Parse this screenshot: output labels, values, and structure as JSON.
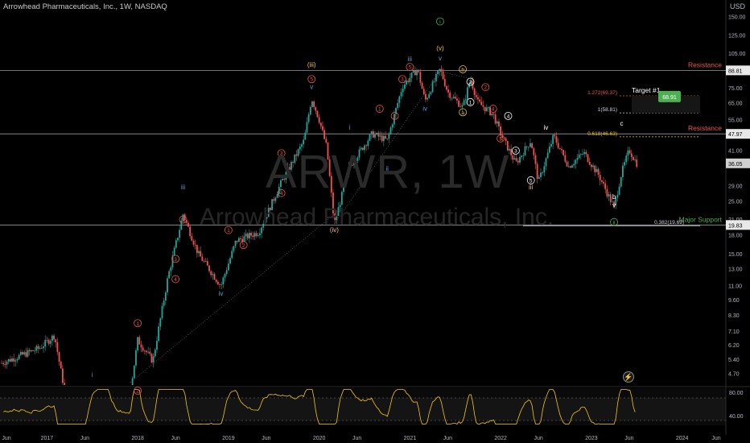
{
  "header": {
    "title": "Arrowhead Pharmaceuticals, Inc., 1W, NASDAQ",
    "currency": "USD"
  },
  "watermark": {
    "symbol": "ARWR, 1W",
    "name": "Arrowhead Pharmaceuticals, Inc."
  },
  "colors": {
    "background": "#000000",
    "up_candle": "#26a69a",
    "down_candle": "#ef5350",
    "rsi_line": "#f5c518",
    "resistance": "#ef5350",
    "support": "#4caf50",
    "target_badge": "#4caf50",
    "wave_red": "#ef5350",
    "wave_blue": "#5b9bd5",
    "wave_yellow": "#f5c518",
    "wave_green": "#4caf50"
  },
  "icons": {
    "flash": "lightning-icon"
  },
  "chart_data": [
    {
      "type": "candlestick",
      "title": "Arrowhead Pharmaceuticals, Inc., 1W, NASDAQ",
      "y_scale": "log",
      "ylim": [
        4.2,
        160
      ],
      "x_tick_labels": [
        "Jun",
        "2017",
        "Jun",
        "2018",
        "Jun",
        "2019",
        "Jun",
        "2020",
        "Jun",
        "2021",
        "Jun",
        "2022",
        "Jun",
        "2023",
        "Jun",
        "2024",
        "Jun"
      ],
      "y_tick_labels": [
        "150.00",
        "125.00",
        "105.00",
        "88.81",
        "75.00",
        "65.00",
        "55.00",
        "47.97",
        "41.00",
        "36.05",
        "29.00",
        "25.00",
        "21.00",
        "19.83",
        "18.00",
        "15.00",
        "13.00",
        "11.00",
        "9.60",
        "8.30",
        "7.10",
        "6.20",
        "5.40",
        "4.70"
      ],
      "price_path": [
        {
          "date": "2016-07",
          "price": 5.2
        },
        {
          "date": "2016-12",
          "price": 6.0
        },
        {
          "date": "2017-02",
          "price": 6.8
        },
        {
          "date": "2017-03",
          "price": 4.5
        },
        {
          "date": "2017-06",
          "price": 1.8
        },
        {
          "date": "2017-09",
          "price": 3.8
        },
        {
          "date": "2017-12",
          "price": 3.9
        },
        {
          "date": "2018-01",
          "price": 6.5
        },
        {
          "date": "2018-03",
          "price": 5.3
        },
        {
          "date": "2018-05",
          "price": 12.0
        },
        {
          "date": "2018-07",
          "price": 22.0
        },
        {
          "date": "2018-09",
          "price": 15.0
        },
        {
          "date": "2018-12",
          "price": 11.0
        },
        {
          "date": "2019-02",
          "price": 17.0
        },
        {
          "date": "2019-05",
          "price": 18.5
        },
        {
          "date": "2019-08",
          "price": 30.0
        },
        {
          "date": "2019-11",
          "price": 45.0
        },
        {
          "date": "2019-12",
          "price": 68.0
        },
        {
          "date": "2020-01",
          "price": 55.0
        },
        {
          "date": "2020-02",
          "price": 42.0
        },
        {
          "date": "2020-03",
          "price": 20.0
        },
        {
          "date": "2020-05",
          "price": 35.0
        },
        {
          "date": "2020-08",
          "price": 48.0
        },
        {
          "date": "2020-10",
          "price": 45.0
        },
        {
          "date": "2020-12",
          "price": 76.0
        },
        {
          "date": "2021-02",
          "price": 90.0
        },
        {
          "date": "2021-03",
          "price": 66.0
        },
        {
          "date": "2021-05",
          "price": 90.0
        },
        {
          "date": "2021-06",
          "price": 72.0
        },
        {
          "date": "2021-08",
          "price": 62.0
        },
        {
          "date": "2021-09",
          "price": 82.0
        },
        {
          "date": "2021-10",
          "price": 65.0
        },
        {
          "date": "2021-12",
          "price": 58.0
        },
        {
          "date": "2022-01",
          "price": 48.0
        },
        {
          "date": "2022-03",
          "price": 36.0
        },
        {
          "date": "2022-05",
          "price": 45.0
        },
        {
          "date": "2022-06",
          "price": 30.0
        },
        {
          "date": "2022-08",
          "price": 47.0
        },
        {
          "date": "2022-10",
          "price": 35.0
        },
        {
          "date": "2022-12",
          "price": 40.0
        },
        {
          "date": "2023-02",
          "price": 32.0
        },
        {
          "date": "2023-04",
          "price": 23.5
        },
        {
          "date": "2023-05",
          "price": 33.0
        },
        {
          "date": "2023-06",
          "price": 41.0
        },
        {
          "date": "2023-07",
          "price": 36.05
        }
      ],
      "price_labels": [
        {
          "price": 88.81,
          "text": "88.81"
        },
        {
          "price": 47.97,
          "text": "47.97"
        },
        {
          "price": 36.05,
          "text": "36.05"
        },
        {
          "price": 19.83,
          "text": "19.83"
        }
      ],
      "level_lines": [
        {
          "price": 88.81,
          "label": "Resistance",
          "kind": "resistance"
        },
        {
          "price": 47.97,
          "label": "Resistance",
          "kind": "resistance"
        },
        {
          "price": 19.83,
          "label": "Major Support",
          "kind": "support"
        }
      ],
      "fib_levels": [
        {
          "price": 69.37,
          "text": "1.272(69.37)",
          "color": "#ef5350"
        },
        {
          "price": 58.81,
          "text": "1(58.81)",
          "color": "#d1d4dc"
        },
        {
          "price": 46.63,
          "text": "0.618(46.63)",
          "color": "#f5c518"
        },
        {
          "price": 19.69,
          "text": "0.382(19.69)",
          "color": "#d1d4dc"
        }
      ],
      "target": {
        "label": "Target #1",
        "price": 68.91,
        "text": "68.91"
      },
      "wave_labels": [
        {
          "date": "2017-07",
          "price": 4.55,
          "text": "i",
          "color": "#5b9bd5"
        },
        {
          "date": "2018-01",
          "price": 3.9,
          "text": "2",
          "color": "#ef5350",
          "circle": true
        },
        {
          "date": "2018-01",
          "price": 7.5,
          "text": "1",
          "color": "#ef5350",
          "circle": true
        },
        {
          "date": "2018-06",
          "price": 14.0,
          "text": "3",
          "color": "#ef5350",
          "circle": true
        },
        {
          "date": "2018-06",
          "price": 11.5,
          "text": "4",
          "color": "#ef5350",
          "circle": true
        },
        {
          "date": "2018-07",
          "price": 20.5,
          "text": "5",
          "color": "#ef5350",
          "circle": true
        },
        {
          "date": "2018-07",
          "price": 28.0,
          "text": "iii",
          "color": "#5b9bd5"
        },
        {
          "date": "2018-12",
          "price": 10.0,
          "text": "iv",
          "color": "#5b9bd5"
        },
        {
          "date": "2019-01",
          "price": 18.5,
          "text": "1",
          "color": "#ef5350",
          "circle": true
        },
        {
          "date": "2019-03",
          "price": 16.0,
          "text": "2",
          "color": "#ef5350",
          "circle": true
        },
        {
          "date": "2019-08",
          "price": 39.0,
          "text": "3",
          "color": "#ef5350",
          "circle": true
        },
        {
          "date": "2019-08",
          "price": 26.5,
          "text": "4",
          "color": "#ef5350",
          "circle": true
        },
        {
          "date": "2019-12",
          "price": 80.0,
          "text": "5",
          "color": "#ef5350",
          "circle": true
        },
        {
          "date": "2019-12",
          "price": 74.0,
          "text": "v",
          "color": "#5b9bd5"
        },
        {
          "date": "2019-12",
          "price": 92.0,
          "text": "(iii)",
          "color": "#f5c518"
        },
        {
          "date": "2020-03",
          "price": 18.5,
          "text": "(iv)",
          "color": "#f5c518"
        },
        {
          "date": "2020-05",
          "price": 50.0,
          "text": "i",
          "color": "#5b9bd5"
        },
        {
          "date": "2020-10",
          "price": 33.5,
          "text": "ii",
          "color": "#5b9bd5"
        },
        {
          "date": "2020-09",
          "price": 60.0,
          "text": "1",
          "color": "#ef5350",
          "circle": true
        },
        {
          "date": "2020-11",
          "price": 56.0,
          "text": "2",
          "color": "#ef5350",
          "circle": true
        },
        {
          "date": "2020-12",
          "price": 80.0,
          "text": "3",
          "color": "#ef5350",
          "circle": true
        },
        {
          "date": "2021-01",
          "price": 90.0,
          "text": "5",
          "color": "#ef5350",
          "circle": true
        },
        {
          "date": "2021-01",
          "price": 97.0,
          "text": "iii",
          "color": "#5b9bd5"
        },
        {
          "date": "2021-03",
          "price": 60.0,
          "text": "iv",
          "color": "#5b9bd5"
        },
        {
          "date": "2021-05",
          "price": 98.0,
          "text": "v",
          "color": "#5b9bd5"
        },
        {
          "date": "2021-05",
          "price": 108.0,
          "text": "(v)",
          "color": "#f5c518"
        },
        {
          "date": "2021-05",
          "price": 140.0,
          "text": "i",
          "color": "#4caf50",
          "circle": true
        },
        {
          "date": "2021-08",
          "price": 58.0,
          "text": "a",
          "color": "#f5c518",
          "circle": true
        },
        {
          "date": "2021-08",
          "price": 88.0,
          "text": "b",
          "color": "#f5c518",
          "circle": true
        },
        {
          "date": "2021-09",
          "price": 78.0,
          "text": "2",
          "color": "#ffffff",
          "circle": true
        },
        {
          "date": "2021-09",
          "price": 64.0,
          "text": "1",
          "color": "#ffffff",
          "circle": true
        },
        {
          "date": "2021-11",
          "price": 74.0,
          "text": "2",
          "color": "#ef5350",
          "circle": true
        },
        {
          "date": "2021-12",
          "price": 60.0,
          "text": "4",
          "color": "#ef5350",
          "circle": true
        },
        {
          "date": "2022-01",
          "price": 45.0,
          "text": "5",
          "color": "#ef5350",
          "circle": true
        },
        {
          "date": "2022-02",
          "price": 56.0,
          "text": "4",
          "color": "#ffffff",
          "circle": true
        },
        {
          "date": "2022-03",
          "price": 40.0,
          "text": "3",
          "color": "#ffffff",
          "circle": true
        },
        {
          "date": "2022-05",
          "price": 30.0,
          "text": "5",
          "color": "#ffffff",
          "circle": true
        },
        {
          "date": "2022-05",
          "price": 28.0,
          "text": "iii",
          "color": "#f5c518"
        },
        {
          "date": "2022-07",
          "price": 50.0,
          "text": "iv",
          "color": "#ffffff"
        },
        {
          "date": "2023-04",
          "price": 25.5,
          "text": "b",
          "color": "#ffffff"
        },
        {
          "date": "2023-04",
          "price": 23.5,
          "text": "v",
          "color": "#ffffff"
        },
        {
          "date": "2023-04",
          "price": 20.0,
          "text": "ii",
          "color": "#4caf50",
          "circle": true
        },
        {
          "date": "2023-05",
          "price": 52.0,
          "text": "c",
          "color": "#ffffff"
        }
      ]
    },
    {
      "type": "line",
      "title": "",
      "ylim": [
        30,
        90
      ],
      "y_tick_labels": [
        "80.00",
        "40.00"
      ],
      "reference_lines": [
        70,
        30
      ]
    }
  ]
}
